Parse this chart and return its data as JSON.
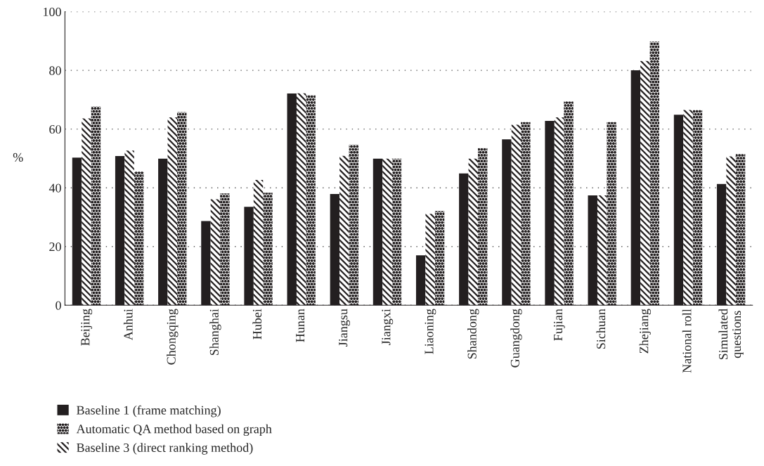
{
  "chart_data": {
    "type": "bar",
    "ylabel": "%",
    "categories": [
      "Beijing",
      "Anhui",
      "Chongqing",
      "Shanghai",
      "Hubei",
      "Hunan",
      "Jiangsu",
      "Jiangxi",
      "Liaoning",
      "Shandong",
      "Guangdong",
      "Fujian",
      "Sichuan",
      "Zhejiang",
      "National roll",
      "Simulated\nquestions"
    ],
    "series": [
      {
        "name": "Baseline 1 (frame matching)",
        "color": "#231f20",
        "values": [
          50.3,
          50.8,
          49.9,
          28.7,
          33.5,
          72.1,
          37.9,
          49.9,
          17.0,
          44.9,
          56.5,
          62.8,
          37.4,
          80.0,
          64.9,
          41.3
        ]
      },
      {
        "name": "Automatic QA method based on graph",
        "color": "#231f20",
        "values": [
          67.7,
          45.5,
          65.8,
          38.1,
          38.3,
          71.6,
          54.7,
          49.9,
          32.1,
          53.5,
          62.4,
          69.4,
          62.4,
          89.8,
          66.5,
          51.5
        ]
      },
      {
        "name": "Baseline 3 (direct ranking method)",
        "color": "#231f20",
        "values": [
          63.6,
          52.7,
          64.0,
          36.1,
          42.7,
          72.2,
          50.9,
          49.9,
          31.1,
          49.9,
          61.5,
          64.0,
          37.4,
          83.2,
          66.5,
          50.7
        ]
      }
    ],
    "ylim": [
      0,
      100
    ],
    "yticks": [
      0,
      20,
      40,
      60,
      80,
      100
    ],
    "grid": "y",
    "legend": "bottom left"
  }
}
